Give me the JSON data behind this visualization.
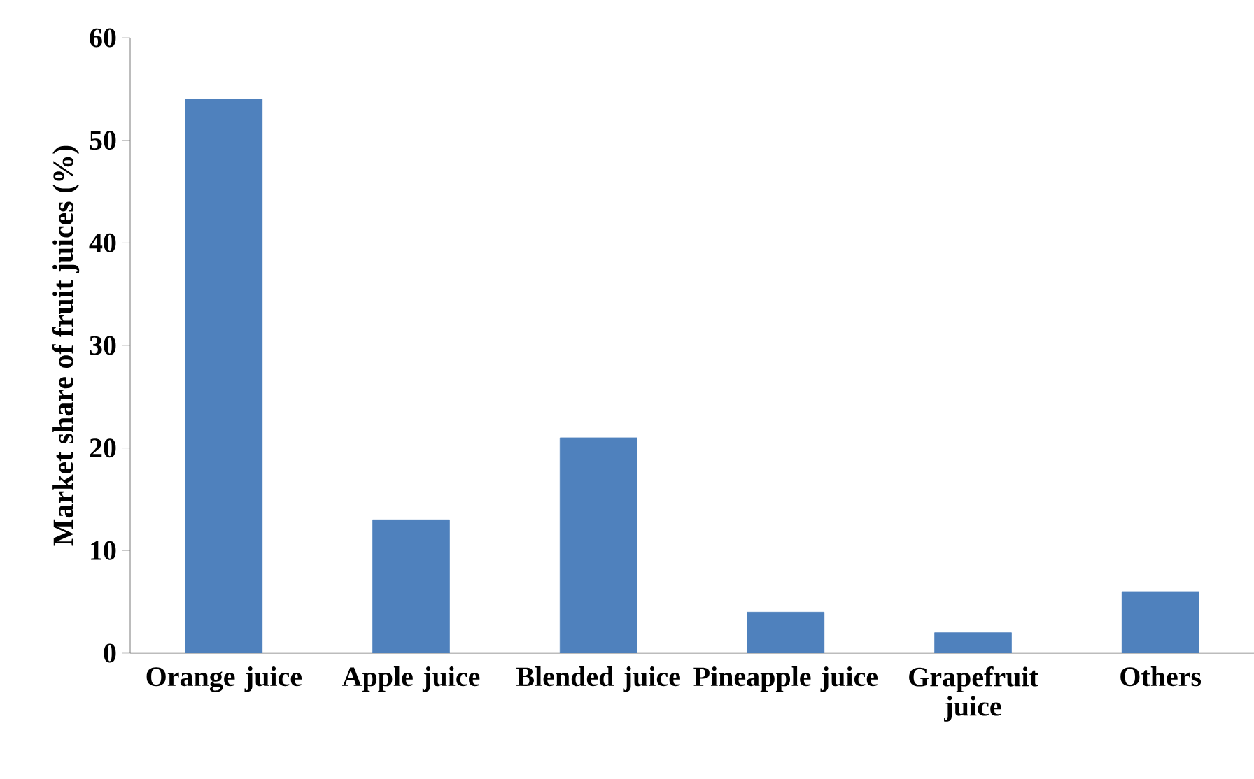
{
  "chart_data": {
    "type": "bar",
    "categories": [
      "Orange juice",
      "Apple juice",
      "Blended juice",
      "Pineapple juice",
      "Grapefruit juice",
      "Others"
    ],
    "values": [
      54,
      13,
      21,
      4,
      2,
      6
    ],
    "color": "#4f81bd",
    "ylabel": "Market share of fruit juices (%)",
    "ylim": [
      0,
      60
    ],
    "yticks": [
      0,
      10,
      20,
      30,
      40,
      50,
      60
    ]
  }
}
